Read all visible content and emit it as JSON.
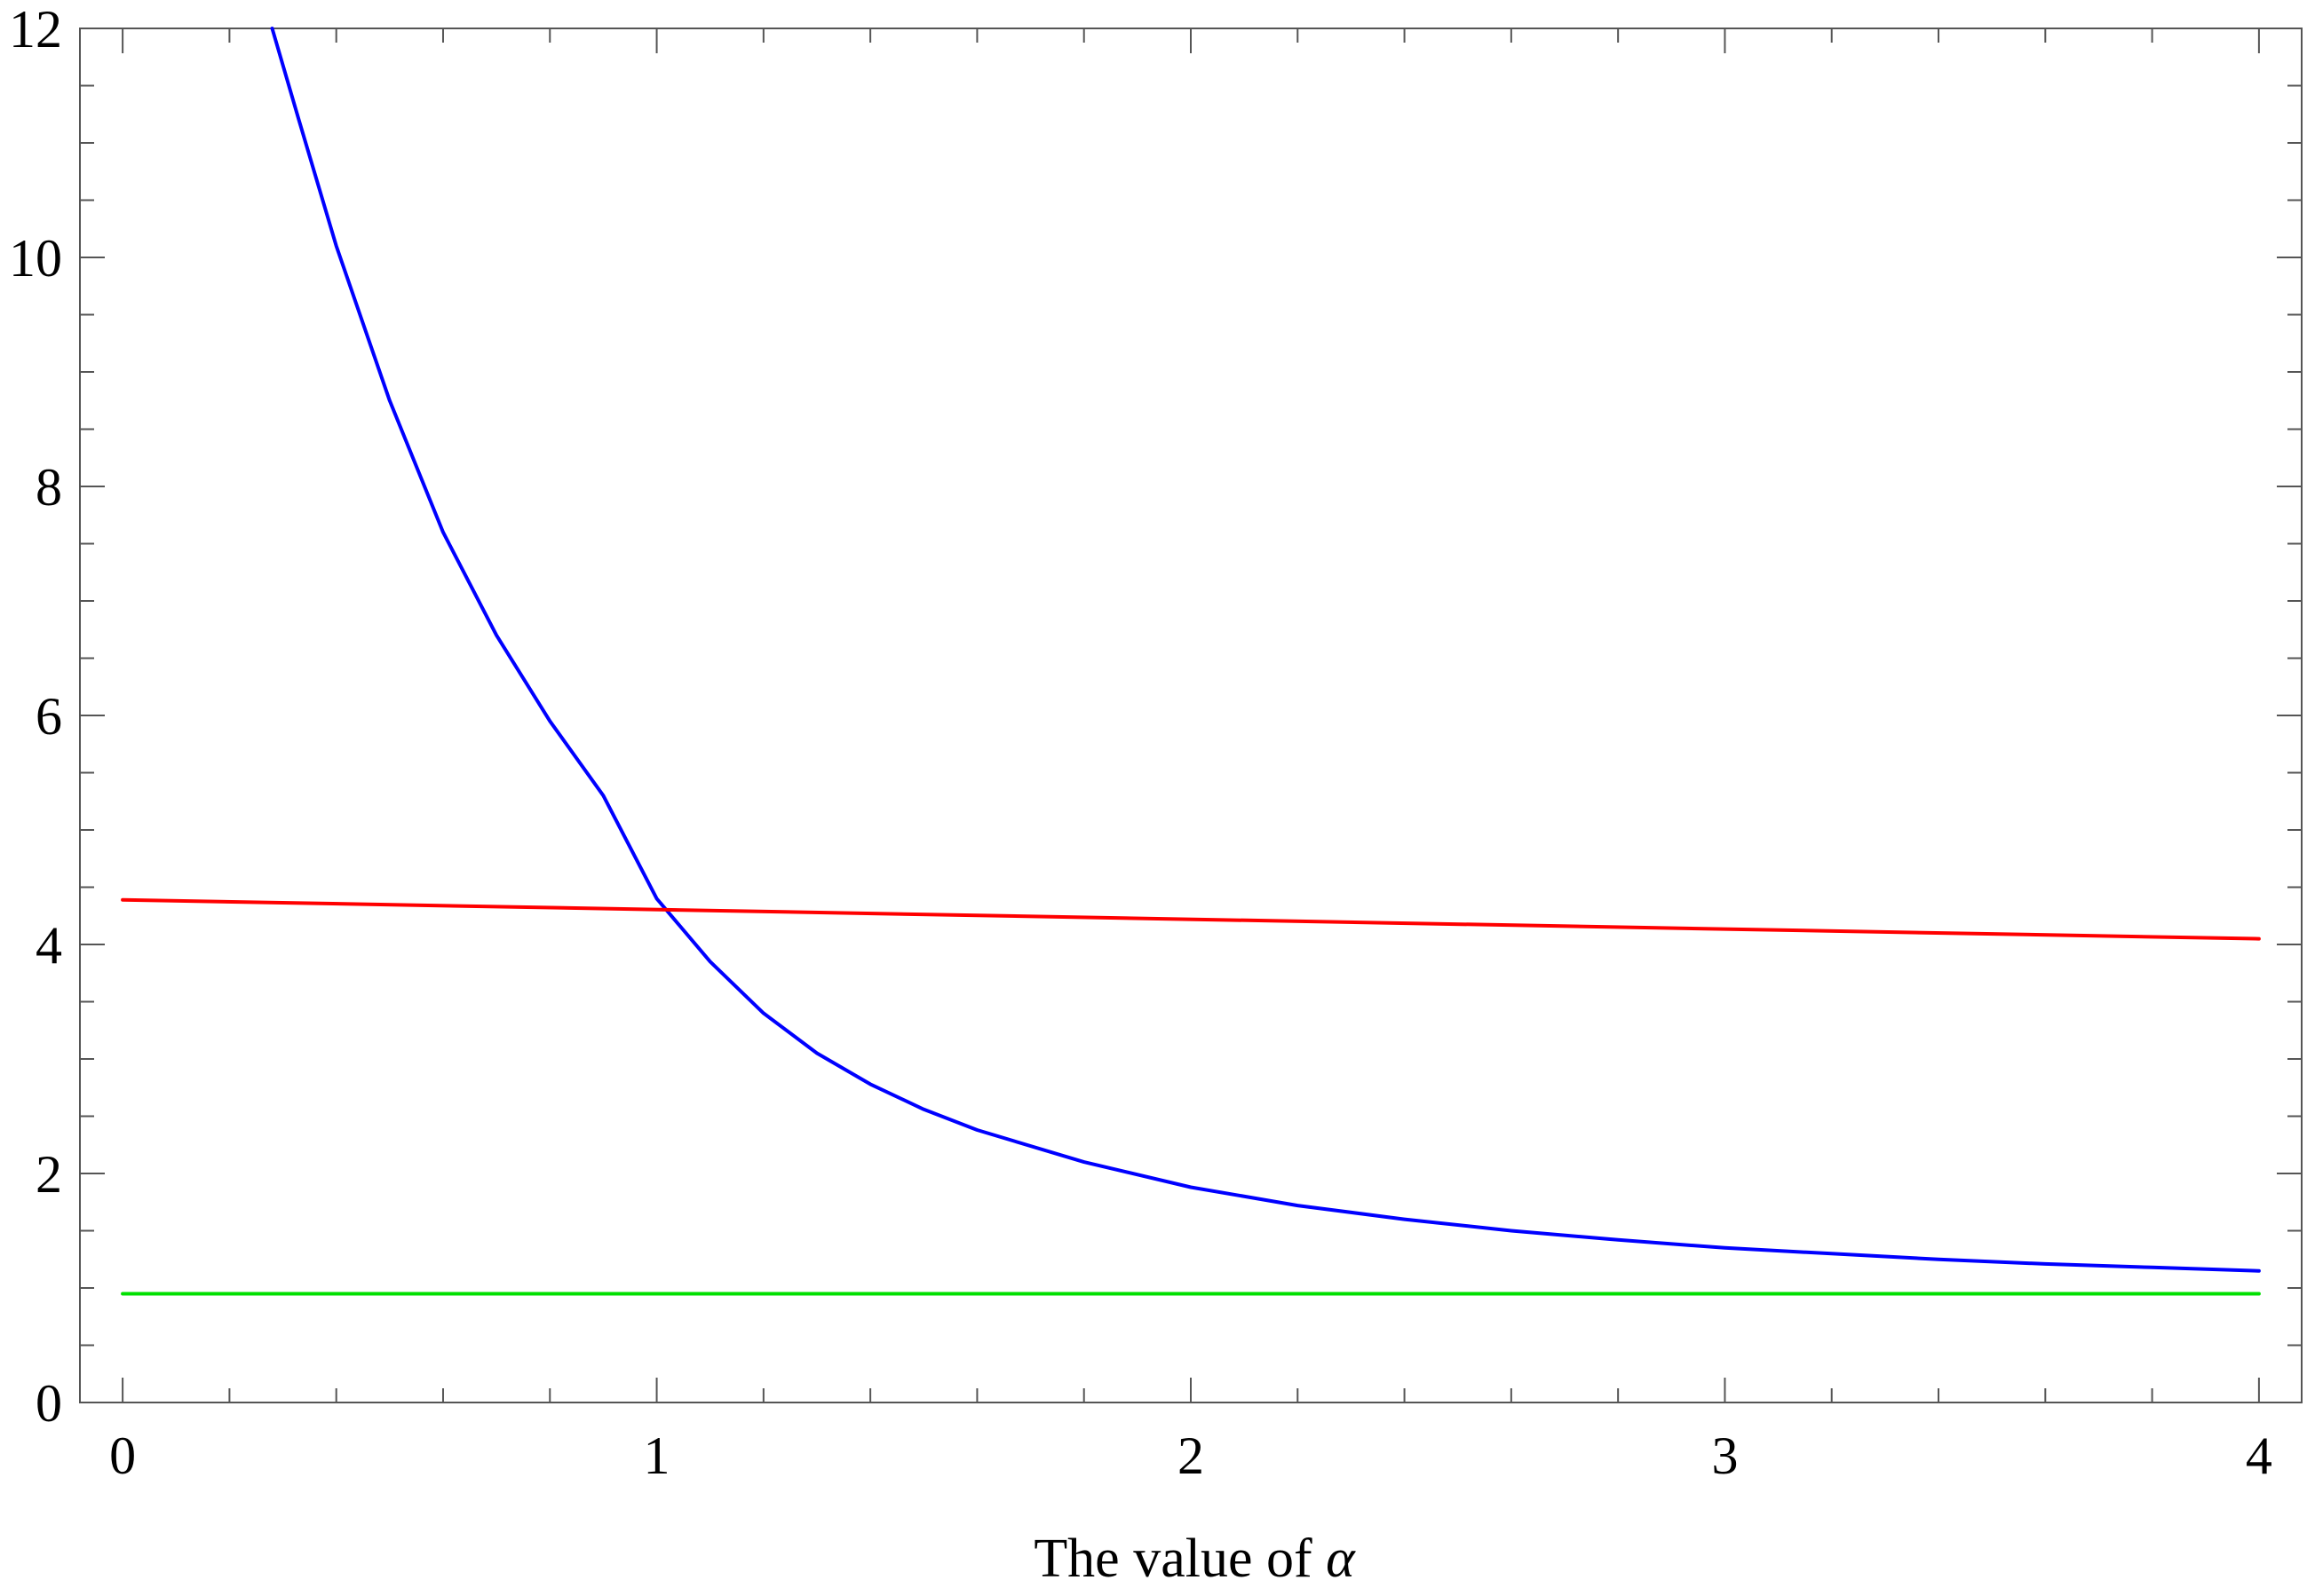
{
  "chart_data": {
    "type": "line",
    "title": "",
    "xlabel_text": "The value of ",
    "xlabel_symbol": "α",
    "ylabel": "",
    "xlim": [
      -0.08,
      4.08
    ],
    "ylim": [
      0,
      12
    ],
    "x_ticks": [
      0,
      1,
      2,
      3,
      4
    ],
    "x_tick_labels": [
      "0",
      "1",
      "2",
      "3",
      "4"
    ],
    "x_minor_step": 0.2,
    "y_ticks": [
      0,
      2,
      4,
      6,
      8,
      10,
      12
    ],
    "y_tick_labels": [
      "0",
      "2",
      "4",
      "6",
      "8",
      "10",
      "12"
    ],
    "y_minor_step": 0.5,
    "grid": false,
    "legend": "none",
    "series": [
      {
        "color": "#0000ff",
        "x": [
          0.28,
          0.33,
          0.4,
          0.5,
          0.6,
          0.7,
          0.8,
          0.9,
          1.0,
          1.1,
          1.2,
          1.3,
          1.4,
          1.5,
          1.6,
          1.8,
          2.0,
          2.2,
          2.4,
          2.6,
          2.8,
          3.0,
          3.2,
          3.4,
          3.6,
          3.8,
          4.0
        ],
        "y": [
          12.0,
          11.2,
          10.1,
          8.75,
          7.6,
          6.7,
          5.95,
          5.3,
          4.4,
          3.85,
          3.4,
          3.05,
          2.78,
          2.56,
          2.38,
          2.1,
          1.88,
          1.72,
          1.6,
          1.5,
          1.42,
          1.35,
          1.3,
          1.25,
          1.21,
          1.18,
          1.15
        ]
      },
      {
        "color": "#ff0000",
        "x": [
          0,
          4
        ],
        "y": [
          4.39,
          4.05
        ]
      },
      {
        "color": "#00e000",
        "x": [
          0,
          4
        ],
        "y": [
          0.95,
          0.95
        ]
      }
    ]
  }
}
